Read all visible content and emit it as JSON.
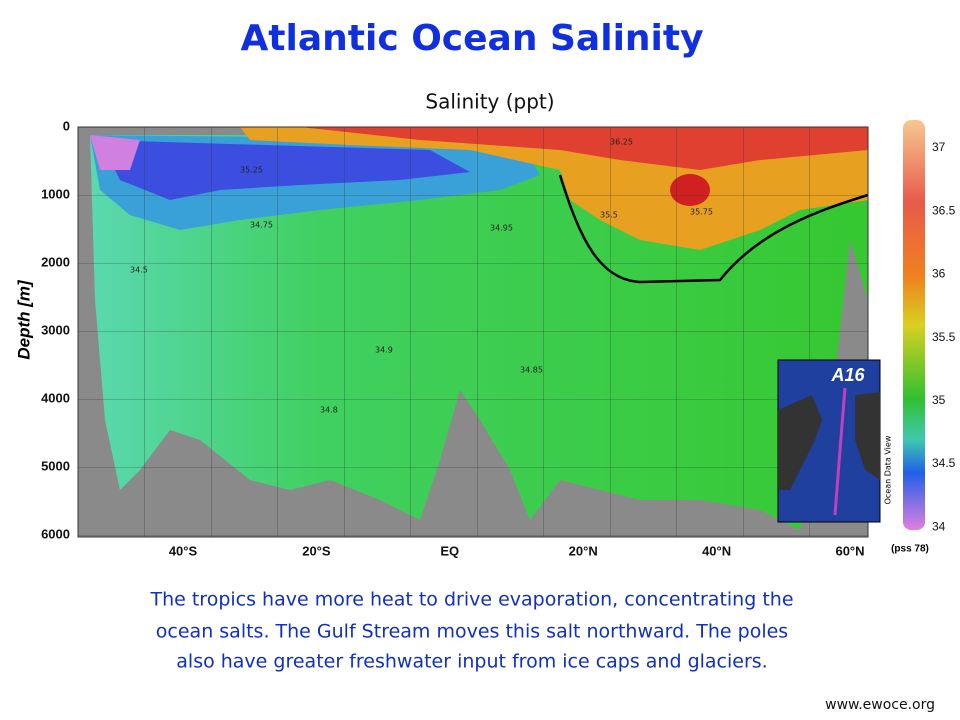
{
  "header": {
    "title": "Atlantic Ocean Salinity"
  },
  "plot": {
    "title": "Salinity (ppt)",
    "y_label": "Depth [m]",
    "yticks": [
      "0",
      "1000",
      "2000",
      "3000",
      "4000",
      "5000",
      "6000"
    ],
    "xticks": [
      "40°S",
      "20°S",
      "EQ",
      "20°N",
      "40°N",
      "60°N"
    ],
    "contour_labels": [
      "35.25",
      "34.5",
      "34.75",
      "34.95",
      "34.9",
      "34.85",
      "34.8",
      "35.5",
      "35.75",
      "36.25"
    ],
    "colorbar_ticks": [
      "37",
      "36.5",
      "36",
      "35.5",
      "35",
      "34.5",
      "34"
    ],
    "colorbar_unit": "(pss 78)",
    "inset_label": "A16",
    "software": "Ocean Data View"
  },
  "caption": [
    "The tropics have more heat to drive evaporation, concentrating the",
    "ocean salts.  The Gulf Stream moves this salt northward.  The poles",
    "also have greater freshwater input from ice caps and glaciers."
  ],
  "source": "www.ewoce.org"
}
